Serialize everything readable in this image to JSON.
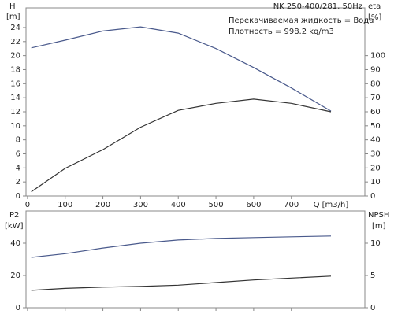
{
  "chart_data": [
    {
      "type": "line",
      "title": "NK 250-400/281, 50Hz",
      "annotations": [
        "Перекачиваемая жидкость = Вода",
        "Плотность = 998.2 kg/m3"
      ],
      "xlabel": "Q [m3/h]",
      "ylabel": "H",
      "yunit": "[m]",
      "y2label": "eta",
      "y2unit": "[%]",
      "x": [
        10,
        100,
        200,
        300,
        400,
        500,
        600,
        700,
        805
      ],
      "xlim": [
        -4,
        895
      ],
      "xticks": [
        0,
        100,
        200,
        300,
        400,
        500,
        600,
        700
      ],
      "ylim": [
        0,
        26.8
      ],
      "yticks": [
        0,
        2,
        4,
        6,
        8,
        10,
        12,
        14,
        16,
        18,
        20,
        22,
        24
      ],
      "y2lim": [
        0,
        134
      ],
      "y2ticks": [
        0,
        10,
        20,
        30,
        40,
        50,
        60,
        70,
        80,
        90,
        100
      ],
      "series": [
        {
          "name": "H",
          "color": "#4a5a8c",
          "values": [
            21.1,
            22.2,
            23.5,
            24.1,
            23.2,
            21,
            18.3,
            15.4,
            12.1
          ]
        },
        {
          "name": "eta",
          "color": "#333333",
          "axis": "y2",
          "values": [
            3,
            19.7,
            33,
            49,
            61,
            66,
            69,
            66,
            60
          ]
        }
      ]
    },
    {
      "type": "line",
      "ylabel": "P2",
      "yunit": "[kW]",
      "y2label": "NPSH",
      "y2unit": "[m]",
      "x": [
        10,
        100,
        200,
        300,
        400,
        500,
        600,
        700,
        805
      ],
      "xlim": [
        -4,
        895
      ],
      "ylim": [
        0,
        60
      ],
      "yticks": [
        0,
        20,
        40
      ],
      "y2lim": [
        0,
        15
      ],
      "y2ticks": [
        0,
        5,
        10
      ],
      "series": [
        {
          "name": "P2",
          "color": "#4a5a8c",
          "values": [
            31.2,
            33.5,
            37,
            40,
            42,
            43,
            43.5,
            44,
            44.5
          ]
        },
        {
          "name": "NPSH",
          "color": "#333333",
          "axis": "y2",
          "values": [
            2.7,
            3.0,
            3.2,
            3.3,
            3.5,
            3.9,
            4.3,
            4.6,
            4.9
          ]
        }
      ]
    }
  ]
}
